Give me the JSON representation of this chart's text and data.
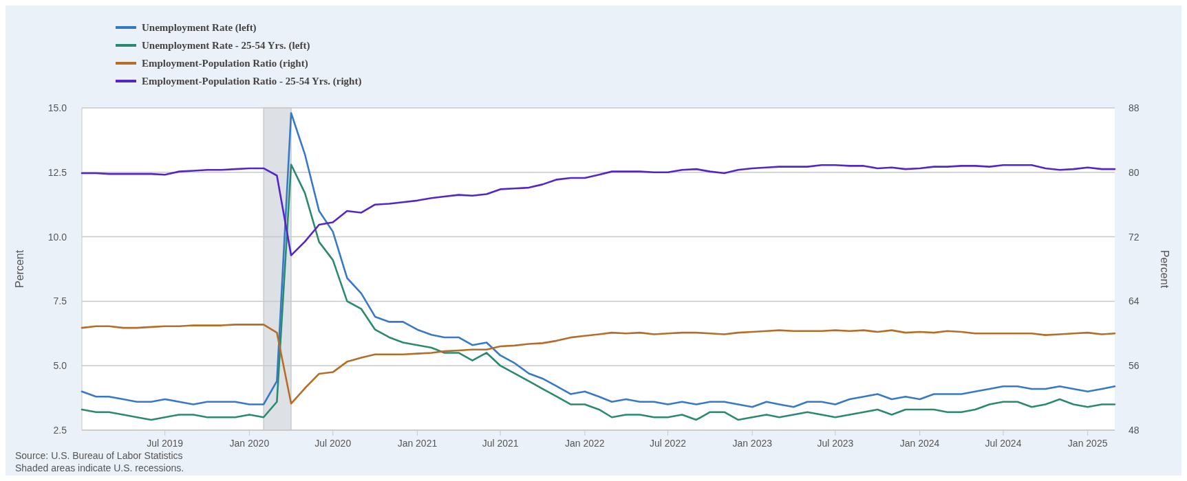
{
  "chart_data": {
    "type": "line",
    "ylabel": "Percent",
    "y2label": "Percent",
    "x": [
      "2019-01",
      "2019-02",
      "2019-03",
      "2019-04",
      "2019-05",
      "2019-06",
      "2019-07",
      "2019-08",
      "2019-09",
      "2019-10",
      "2019-11",
      "2019-12",
      "2020-01",
      "2020-02",
      "2020-03",
      "2020-04",
      "2020-05",
      "2020-06",
      "2020-07",
      "2020-08",
      "2020-09",
      "2020-10",
      "2020-11",
      "2020-12",
      "2021-01",
      "2021-02",
      "2021-03",
      "2021-04",
      "2021-05",
      "2021-06",
      "2021-07",
      "2021-08",
      "2021-09",
      "2021-10",
      "2021-11",
      "2021-12",
      "2022-01",
      "2022-02",
      "2022-03",
      "2022-04",
      "2022-05",
      "2022-06",
      "2022-07",
      "2022-08",
      "2022-09",
      "2022-10",
      "2022-11",
      "2022-12",
      "2023-01",
      "2023-02",
      "2023-03",
      "2023-04",
      "2023-05",
      "2023-06",
      "2023-07",
      "2023-08",
      "2023-09",
      "2023-10",
      "2023-11",
      "2023-12",
      "2024-01",
      "2024-02",
      "2024-03",
      "2024-04",
      "2024-05",
      "2024-06",
      "2024-07",
      "2024-08",
      "2024-09",
      "2024-10",
      "2024-11",
      "2024-12",
      "2025-01",
      "2025-02",
      "2025-03"
    ],
    "series": [
      {
        "name": "Unemployment Rate (left)",
        "color": "#3779c9",
        "axis": "y",
        "values": [
          4.0,
          3.8,
          3.8,
          3.7,
          3.6,
          3.6,
          3.7,
          3.6,
          3.5,
          3.6,
          3.6,
          3.6,
          3.5,
          3.5,
          4.4,
          14.8,
          13.2,
          11.0,
          10.2,
          8.4,
          7.8,
          6.9,
          6.7,
          6.7,
          6.4,
          6.2,
          6.1,
          6.1,
          5.8,
          5.9,
          5.4,
          5.1,
          4.7,
          4.5,
          4.2,
          3.9,
          4.0,
          3.8,
          3.6,
          3.7,
          3.6,
          3.6,
          3.5,
          3.6,
          3.5,
          3.6,
          3.6,
          3.5,
          3.4,
          3.6,
          3.5,
          3.4,
          3.6,
          3.6,
          3.5,
          3.7,
          3.8,
          3.9,
          3.7,
          3.8,
          3.7,
          3.9,
          3.9,
          3.9,
          4.0,
          4.1,
          4.2,
          4.2,
          4.1,
          4.1,
          4.2,
          4.1,
          4.0,
          4.1,
          4.2
        ]
      },
      {
        "name": "Unemployment Rate - 25-54 Yrs. (left)",
        "color": "#2a8a6f",
        "axis": "y",
        "values": [
          3.3,
          3.2,
          3.2,
          3.1,
          3.0,
          2.9,
          3.0,
          3.1,
          3.1,
          3.0,
          3.0,
          3.0,
          3.1,
          3.0,
          3.6,
          12.8,
          11.7,
          9.8,
          9.1,
          7.5,
          7.2,
          6.4,
          6.1,
          5.9,
          5.8,
          5.7,
          5.5,
          5.5,
          5.2,
          5.5,
          5.0,
          4.7,
          4.4,
          4.1,
          3.8,
          3.5,
          3.5,
          3.3,
          3.0,
          3.1,
          3.1,
          3.0,
          3.0,
          3.1,
          2.9,
          3.2,
          3.2,
          2.9,
          3.0,
          3.1,
          3.0,
          3.1,
          3.2,
          3.1,
          3.0,
          3.1,
          3.2,
          3.3,
          3.1,
          3.3,
          3.3,
          3.3,
          3.2,
          3.2,
          3.3,
          3.5,
          3.6,
          3.6,
          3.4,
          3.5,
          3.7,
          3.5,
          3.4,
          3.5,
          3.5
        ]
      },
      {
        "name": "Employment-Population Ratio (right)",
        "color": "#b66d26",
        "axis": "y2",
        "values": [
          60.7,
          60.9,
          60.9,
          60.7,
          60.7,
          60.8,
          60.9,
          60.9,
          61.0,
          61.0,
          61.0,
          61.1,
          61.1,
          61.1,
          60.1,
          51.3,
          53.2,
          55.0,
          55.2,
          56.5,
          57.0,
          57.4,
          57.4,
          57.4,
          57.5,
          57.6,
          57.8,
          57.9,
          58.0,
          58.0,
          58.4,
          58.5,
          58.7,
          58.8,
          59.1,
          59.5,
          59.7,
          59.9,
          60.1,
          60.0,
          60.1,
          59.9,
          60.0,
          60.1,
          60.1,
          60.0,
          59.9,
          60.1,
          60.2,
          60.3,
          60.4,
          60.3,
          60.3,
          60.3,
          60.4,
          60.3,
          60.4,
          60.2,
          60.4,
          60.1,
          60.2,
          60.1,
          60.3,
          60.2,
          60.0,
          60.0,
          60.0,
          60.0,
          60.0,
          59.8,
          59.9,
          60.0,
          60.1,
          59.9,
          60.0
        ]
      },
      {
        "name": "Employment-Population Ratio - 25-54 Yrs. (right)",
        "color": "#5326c9",
        "axis": "y2",
        "values": [
          79.9,
          79.9,
          79.8,
          79.8,
          79.8,
          79.8,
          79.7,
          80.1,
          80.2,
          80.3,
          80.3,
          80.4,
          80.5,
          80.5,
          79.6,
          69.7,
          71.4,
          73.5,
          73.8,
          75.2,
          75.0,
          76.0,
          76.1,
          76.3,
          76.5,
          76.8,
          77.0,
          77.2,
          77.1,
          77.3,
          77.9,
          78.0,
          78.1,
          78.5,
          79.1,
          79.3,
          79.3,
          79.7,
          80.1,
          80.1,
          80.1,
          80.0,
          80.0,
          80.3,
          80.4,
          80.1,
          79.9,
          80.3,
          80.5,
          80.6,
          80.7,
          80.7,
          80.7,
          80.9,
          80.9,
          80.8,
          80.8,
          80.5,
          80.6,
          80.4,
          80.5,
          80.7,
          80.7,
          80.8,
          80.8,
          80.7,
          80.9,
          80.9,
          80.9,
          80.5,
          80.3,
          80.4,
          80.6,
          80.4,
          80.4
        ]
      }
    ],
    "xlim": [
      "2019-01",
      "2025-03"
    ],
    "xticks": [
      {
        "value": "2019-07",
        "label": "Jul 2019"
      },
      {
        "value": "2020-01",
        "label": "Jan 2020"
      },
      {
        "value": "2020-07",
        "label": "Jul 2020"
      },
      {
        "value": "2021-01",
        "label": "Jan 2021"
      },
      {
        "value": "2021-07",
        "label": "Jul 2021"
      },
      {
        "value": "2022-01",
        "label": "Jan 2022"
      },
      {
        "value": "2022-07",
        "label": "Jul 2022"
      },
      {
        "value": "2023-01",
        "label": "Jan 2023"
      },
      {
        "value": "2023-07",
        "label": "Jul 2023"
      },
      {
        "value": "2024-01",
        "label": "Jan 2024"
      },
      {
        "value": "2024-07",
        "label": "Jul 2024"
      },
      {
        "value": "2025-01",
        "label": "Jan 2025"
      }
    ],
    "ylim": [
      2.5,
      15.0
    ],
    "yticks": [
      {
        "value": 2.5,
        "label": "2.5"
      },
      {
        "value": 5,
        "label": "5.0"
      },
      {
        "value": 7.5,
        "label": "7.5"
      },
      {
        "value": 10,
        "label": "10.0"
      },
      {
        "value": 12.5,
        "label": "12.5"
      },
      {
        "value": 15,
        "label": "15.0"
      }
    ],
    "y2lim": [
      48,
      88
    ],
    "y2ticks": [
      48,
      56,
      64,
      72,
      80,
      88
    ],
    "bands": [
      {
        "axis": "x",
        "from": "2020-02",
        "to": "2020-04",
        "color": "#dde1e6"
      }
    ],
    "grid": "y",
    "legend": "top left",
    "line_style": "solid",
    "annotations": [
      "Source: U.S. Bureau of Labor Statistics",
      "Shaded areas indicate U.S. recessions."
    ]
  }
}
